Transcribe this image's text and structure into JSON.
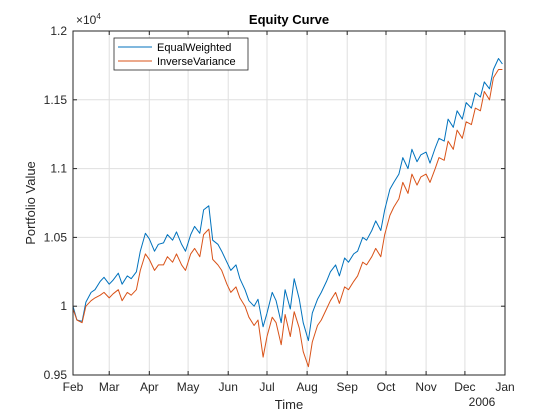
{
  "chart_data": {
    "type": "line",
    "title": "Equity Curve",
    "xlabel": "Time",
    "ylabel": "Portfolio Value",
    "y_exponent_label": "×10",
    "y_exponent_power": "4",
    "year_label": "2006",
    "y_ticks": [
      "0.95",
      "1",
      "1.05",
      "1.1",
      "1.15",
      "1.2"
    ],
    "y_tick_values": [
      0.95,
      1.0,
      1.05,
      1.1,
      1.15,
      1.2
    ],
    "ylim": [
      0.95,
      1.2
    ],
    "x_ticks": [
      "Feb",
      "Mar",
      "Apr",
      "May",
      "Jun",
      "Jul",
      "Aug",
      "Sep",
      "Oct",
      "Nov",
      "Dec",
      "Jan"
    ],
    "x_tick_dates": [
      "2005-02-01",
      "2005-03-01",
      "2005-04-01",
      "2005-05-01",
      "2005-06-01",
      "2005-07-01",
      "2005-08-01",
      "2005-09-01",
      "2005-10-01",
      "2005-11-01",
      "2005-12-01",
      "2006-01-01"
    ],
    "xlim": [
      "2005-02-01",
      "2006-01-01"
    ],
    "grid": true,
    "legend_position": "top-left",
    "series": [
      {
        "name": "EqualWeighted",
        "color": "#0072BD",
        "x": [
          "2005-02-01",
          "2005-02-04",
          "2005-02-08",
          "2005-02-11",
          "2005-02-15",
          "2005-02-18",
          "2005-02-22",
          "2005-02-25",
          "2005-03-01",
          "2005-03-04",
          "2005-03-08",
          "2005-03-11",
          "2005-03-15",
          "2005-03-18",
          "2005-03-22",
          "2005-03-25",
          "2005-03-29",
          "2005-04-01",
          "2005-04-05",
          "2005-04-08",
          "2005-04-12",
          "2005-04-15",
          "2005-04-19",
          "2005-04-22",
          "2005-04-26",
          "2005-04-29",
          "2005-05-03",
          "2005-05-06",
          "2005-05-10",
          "2005-05-13",
          "2005-05-17",
          "2005-05-20",
          "2005-05-24",
          "2005-05-27",
          "2005-05-31",
          "2005-06-03",
          "2005-06-07",
          "2005-06-10",
          "2005-06-14",
          "2005-06-17",
          "2005-06-21",
          "2005-06-24",
          "2005-06-28",
          "2005-07-01",
          "2005-07-05",
          "2005-07-08",
          "2005-07-12",
          "2005-07-15",
          "2005-07-19",
          "2005-07-22",
          "2005-07-26",
          "2005-07-29",
          "2005-08-02",
          "2005-08-05",
          "2005-08-09",
          "2005-08-12",
          "2005-08-16",
          "2005-08-19",
          "2005-08-23",
          "2005-08-26",
          "2005-08-30",
          "2005-09-02",
          "2005-09-06",
          "2005-09-09",
          "2005-09-13",
          "2005-09-16",
          "2005-09-20",
          "2005-09-23",
          "2005-09-27",
          "2005-09-30",
          "2005-10-04",
          "2005-10-07",
          "2005-10-11",
          "2005-10-14",
          "2005-10-18",
          "2005-10-21",
          "2005-10-25",
          "2005-10-28",
          "2005-11-01",
          "2005-11-04",
          "2005-11-08",
          "2005-11-11",
          "2005-11-15",
          "2005-11-18",
          "2005-11-22",
          "2005-11-25",
          "2005-11-29",
          "2005-12-02",
          "2005-12-06",
          "2005-12-09",
          "2005-12-13",
          "2005-12-16",
          "2005-12-20",
          "2005-12-23",
          "2005-12-27",
          "2005-12-30"
        ],
        "values": [
          1.0,
          0.99,
          0.989,
          1.003,
          1.01,
          1.012,
          1.018,
          1.021,
          1.016,
          1.019,
          1.024,
          1.016,
          1.022,
          1.02,
          1.025,
          1.04,
          1.053,
          1.049,
          1.04,
          1.045,
          1.046,
          1.052,
          1.048,
          1.054,
          1.045,
          1.04,
          1.052,
          1.058,
          1.053,
          1.07,
          1.073,
          1.048,
          1.045,
          1.04,
          1.032,
          1.026,
          1.03,
          1.02,
          1.012,
          1.004,
          1.0,
          1.005,
          0.985,
          0.995,
          1.01,
          1.004,
          0.988,
          1.012,
          0.998,
          1.02,
          1.005,
          0.988,
          0.975,
          0.995,
          1.005,
          1.01,
          1.018,
          1.025,
          1.03,
          1.022,
          1.035,
          1.032,
          1.038,
          1.04,
          1.05,
          1.048,
          1.055,
          1.062,
          1.055,
          1.07,
          1.085,
          1.09,
          1.096,
          1.108,
          1.1,
          1.114,
          1.105,
          1.11,
          1.112,
          1.104,
          1.115,
          1.122,
          1.12,
          1.136,
          1.13,
          1.142,
          1.136,
          1.148,
          1.144,
          1.155,
          1.152,
          1.163,
          1.158,
          1.172,
          1.18,
          1.176
        ]
      },
      {
        "name": "InverseVariance",
        "color": "#D95319",
        "x": [
          "2005-02-01",
          "2005-02-04",
          "2005-02-08",
          "2005-02-11",
          "2005-02-15",
          "2005-02-18",
          "2005-02-22",
          "2005-02-25",
          "2005-03-01",
          "2005-03-04",
          "2005-03-08",
          "2005-03-11",
          "2005-03-15",
          "2005-03-18",
          "2005-03-22",
          "2005-03-25",
          "2005-03-29",
          "2005-04-01",
          "2005-04-05",
          "2005-04-08",
          "2005-04-12",
          "2005-04-15",
          "2005-04-19",
          "2005-04-22",
          "2005-04-26",
          "2005-04-29",
          "2005-05-03",
          "2005-05-06",
          "2005-05-10",
          "2005-05-13",
          "2005-05-17",
          "2005-05-20",
          "2005-05-24",
          "2005-05-27",
          "2005-05-31",
          "2005-06-03",
          "2005-06-07",
          "2005-06-10",
          "2005-06-14",
          "2005-06-17",
          "2005-06-21",
          "2005-06-24",
          "2005-06-28",
          "2005-07-01",
          "2005-07-05",
          "2005-07-08",
          "2005-07-12",
          "2005-07-15",
          "2005-07-19",
          "2005-07-22",
          "2005-07-26",
          "2005-07-29",
          "2005-08-02",
          "2005-08-05",
          "2005-08-09",
          "2005-08-12",
          "2005-08-16",
          "2005-08-19",
          "2005-08-23",
          "2005-08-26",
          "2005-08-30",
          "2005-09-02",
          "2005-09-06",
          "2005-09-09",
          "2005-09-13",
          "2005-09-16",
          "2005-09-20",
          "2005-09-23",
          "2005-09-27",
          "2005-09-30",
          "2005-10-04",
          "2005-10-07",
          "2005-10-11",
          "2005-10-14",
          "2005-10-18",
          "2005-10-21",
          "2005-10-25",
          "2005-10-28",
          "2005-11-01",
          "2005-11-04",
          "2005-11-08",
          "2005-11-11",
          "2005-11-15",
          "2005-11-18",
          "2005-11-22",
          "2005-11-25",
          "2005-11-29",
          "2005-12-02",
          "2005-12-06",
          "2005-12-09",
          "2005-12-13",
          "2005-12-16",
          "2005-12-20",
          "2005-12-23",
          "2005-12-27",
          "2005-12-30"
        ],
        "values": [
          0.998,
          0.99,
          0.988,
          1.0,
          1.004,
          1.006,
          1.008,
          1.01,
          1.006,
          1.009,
          1.012,
          1.004,
          1.01,
          1.008,
          1.012,
          1.026,
          1.038,
          1.034,
          1.026,
          1.03,
          1.03,
          1.036,
          1.032,
          1.038,
          1.03,
          1.026,
          1.038,
          1.042,
          1.036,
          1.052,
          1.056,
          1.034,
          1.03,
          1.026,
          1.016,
          1.01,
          1.014,
          1.006,
          1.0,
          0.992,
          0.986,
          0.99,
          0.963,
          0.978,
          0.992,
          0.988,
          0.972,
          0.994,
          0.978,
          0.996,
          0.984,
          0.967,
          0.956,
          0.974,
          0.986,
          0.99,
          0.998,
          1.004,
          1.01,
          1.002,
          1.014,
          1.012,
          1.018,
          1.022,
          1.032,
          1.03,
          1.036,
          1.042,
          1.036,
          1.052,
          1.066,
          1.072,
          1.078,
          1.09,
          1.082,
          1.096,
          1.088,
          1.094,
          1.096,
          1.09,
          1.1,
          1.108,
          1.106,
          1.12,
          1.114,
          1.128,
          1.122,
          1.134,
          1.132,
          1.144,
          1.142,
          1.156,
          1.15,
          1.166,
          1.172,
          1.172
        ]
      }
    ]
  }
}
